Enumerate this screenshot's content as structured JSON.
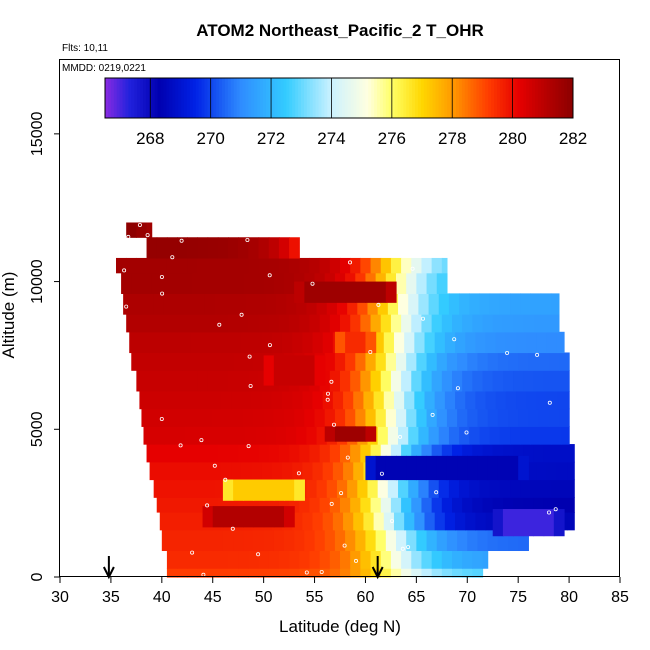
{
  "chart_data": {
    "type": "heatmap",
    "title": "ATOM2 Northeast_Pacific_2 T_OHR",
    "notes": [
      "Flts: 10,11",
      "MMDD: 0219,0221"
    ],
    "xlabel": "Latitude (deg N)",
    "ylabel": "Altitude (m)",
    "xlim": [
      30,
      85
    ],
    "ylim": [
      0,
      17500
    ],
    "x_ticks": [
      30,
      35,
      40,
      45,
      50,
      55,
      60,
      65,
      70,
      75,
      80,
      85
    ],
    "y_ticks": [
      0,
      5000,
      10000,
      15000
    ],
    "colorbar": {
      "range": [
        266.5,
        282
      ],
      "ticks": [
        268,
        270,
        272,
        274,
        276,
        278,
        280,
        282
      ],
      "placement": "top-inside"
    },
    "color_stops": [
      {
        "value": 266.5,
        "color": "#8a2be2"
      },
      {
        "value": 267.3,
        "color": "#2222dd"
      },
      {
        "value": 268.3,
        "color": "#0000b0"
      },
      {
        "value": 269.5,
        "color": "#0022e6"
      },
      {
        "value": 271.0,
        "color": "#2f8cff"
      },
      {
        "value": 272.5,
        "color": "#33ccff"
      },
      {
        "value": 274.0,
        "color": "#ccf2ff"
      },
      {
        "value": 275.2,
        "color": "#ffffe0"
      },
      {
        "value": 276.0,
        "color": "#ffff66"
      },
      {
        "value": 277.0,
        "color": "#ffd700"
      },
      {
        "value": 278.0,
        "color": "#ff9a00"
      },
      {
        "value": 279.2,
        "color": "#ff3c00"
      },
      {
        "value": 280.2,
        "color": "#e60000"
      },
      {
        "value": 281.2,
        "color": "#b20000"
      },
      {
        "value": 282.0,
        "color": "#8b0000"
      }
    ],
    "bands": [
      {
        "alt": [
          0,
          300
        ],
        "lat": [
          40.5,
          71.5
        ],
        "t_ends": [
          279.2,
          272.8
        ]
      },
      {
        "alt": [
          300,
          900
        ],
        "lat": [
          40.5,
          72
        ],
        "t_ends": [
          279.5,
          271.5
        ]
      },
      {
        "alt": [
          900,
          1600
        ],
        "lat": [
          40,
          76
        ],
        "t_ends": [
          279.6,
          270.5
        ]
      },
      {
        "alt": [
          1600,
          2200
        ],
        "lat": [
          39.8,
          80.5
        ],
        "t_ends": [
          279.7,
          268.5
        ]
      },
      {
        "alt": [
          2200,
          2700
        ],
        "lat": [
          39.5,
          80.5
        ],
        "t_ends": [
          279.8,
          268.3
        ]
      },
      {
        "alt": [
          2700,
          3300
        ],
        "lat": [
          39.2,
          80.5
        ],
        "t_ends": [
          279.9,
          268.5
        ]
      },
      {
        "alt": [
          3300,
          3900
        ],
        "lat": [
          38.8,
          80.5
        ],
        "t_ends": [
          280,
          268.7
        ]
      },
      {
        "alt": [
          3900,
          4500
        ],
        "lat": [
          38.5,
          80.5
        ],
        "t_ends": [
          280.2,
          268.8
        ]
      },
      {
        "alt": [
          4500,
          5100
        ],
        "lat": [
          38.2,
          80
        ],
        "t_ends": [
          280.5,
          269.8
        ]
      },
      {
        "alt": [
          5100,
          5700
        ],
        "lat": [
          38,
          80
        ],
        "t_ends": [
          280.6,
          270
        ]
      },
      {
        "alt": [
          5700,
          6300
        ],
        "lat": [
          37.8,
          80
        ],
        "t_ends": [
          280.7,
          270
        ]
      },
      {
        "alt": [
          6300,
          7000
        ],
        "lat": [
          37.5,
          80
        ],
        "t_ends": [
          280.8,
          270.2
        ]
      },
      {
        "alt": [
          7000,
          7600
        ],
        "lat": [
          37,
          80
        ],
        "t_ends": [
          280.9,
          270.5
        ]
      },
      {
        "alt": [
          7600,
          8300
        ],
        "lat": [
          36.8,
          79.5
        ],
        "t_ends": [
          281,
          271
        ]
      },
      {
        "alt": [
          8300,
          8900
        ],
        "lat": [
          36.5,
          79
        ],
        "t_ends": [
          281.2,
          271.3
        ]
      },
      {
        "alt": [
          8900,
          9600
        ],
        "lat": [
          36.2,
          79
        ],
        "t_ends": [
          281.3,
          271.5
        ]
      },
      {
        "alt": [
          9600,
          10300
        ],
        "lat": [
          36,
          68
        ],
        "t_ends": [
          281.5,
          272.5
        ]
      },
      {
        "alt": [
          10300,
          10800
        ],
        "lat": [
          35.5,
          68
        ],
        "t_ends": [
          281.5,
          273
        ]
      },
      {
        "alt": [
          10800,
          11500
        ],
        "lat": [
          38.5,
          53.5
        ],
        "t_ends": [
          281.8,
          279.5
        ]
      },
      {
        "alt": [
          11500,
          12000
        ],
        "lat": [
          36.5,
          39
        ],
        "t_ends": [
          282,
          281.5
        ]
      }
    ],
    "patches": [
      {
        "alt": [
          1700,
          2400
        ],
        "lat": [
          44,
          53
        ],
        "t": 281.2
      },
      {
        "alt": [
          1400,
          2300
        ],
        "lat": [
          72.5,
          79.5
        ],
        "t": 267.1
      },
      {
        "alt": [
          4600,
          5100
        ],
        "lat": [
          56,
          61
        ],
        "t": 281.6
      },
      {
        "alt": [
          3300,
          4100
        ],
        "lat": [
          60,
          76
        ],
        "t": 268.4
      },
      {
        "alt": [
          9300,
          10000
        ],
        "lat": [
          53,
          63
        ],
        "t": 281.6
      },
      {
        "alt": [
          6500,
          7500
        ],
        "lat": [
          50,
          56
        ],
        "t": 280.8
      },
      {
        "alt": [
          2600,
          3300
        ],
        "lat": [
          46,
          54
        ],
        "t": 277.2
      },
      {
        "alt": [
          7600,
          8300
        ],
        "lat": [
          57,
          61
        ],
        "t": 279.5
      }
    ],
    "marker_latitudes": [
      34.8,
      61.2
    ]
  }
}
